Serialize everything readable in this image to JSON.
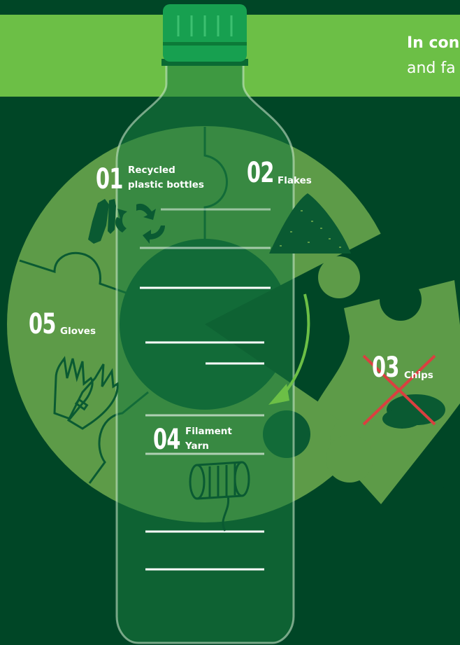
{
  "banner": {
    "title_bold": "In conc",
    "title_light": "and fa"
  },
  "steps": [
    {
      "number": "01",
      "label_line1": "Recycled",
      "label_line2": "plastic bottles",
      "icon": "recycle-bottles-icon"
    },
    {
      "number": "02",
      "label_line1": "Flakes",
      "label_line2": "",
      "icon": "flakes-pile-icon"
    },
    {
      "number": "03",
      "label_line1": "Chips",
      "label_line2": "",
      "icon": "chips-pile-icon",
      "crossed_out": true
    },
    {
      "number": "04",
      "label_line1": "Filament",
      "label_line2": "Yarn",
      "icon": "yarn-spool-icon"
    },
    {
      "number": "05",
      "label_line1": "Gloves",
      "label_line2": "",
      "icon": "gloves-icon"
    }
  ],
  "colors": {
    "background": "#004626",
    "banner": "#6cbf46",
    "ring": "#5d9b48",
    "bottle": "#0c6a3a",
    "cap": "#17a050",
    "arrow": "#6cbf46",
    "cross": "#d94040"
  }
}
